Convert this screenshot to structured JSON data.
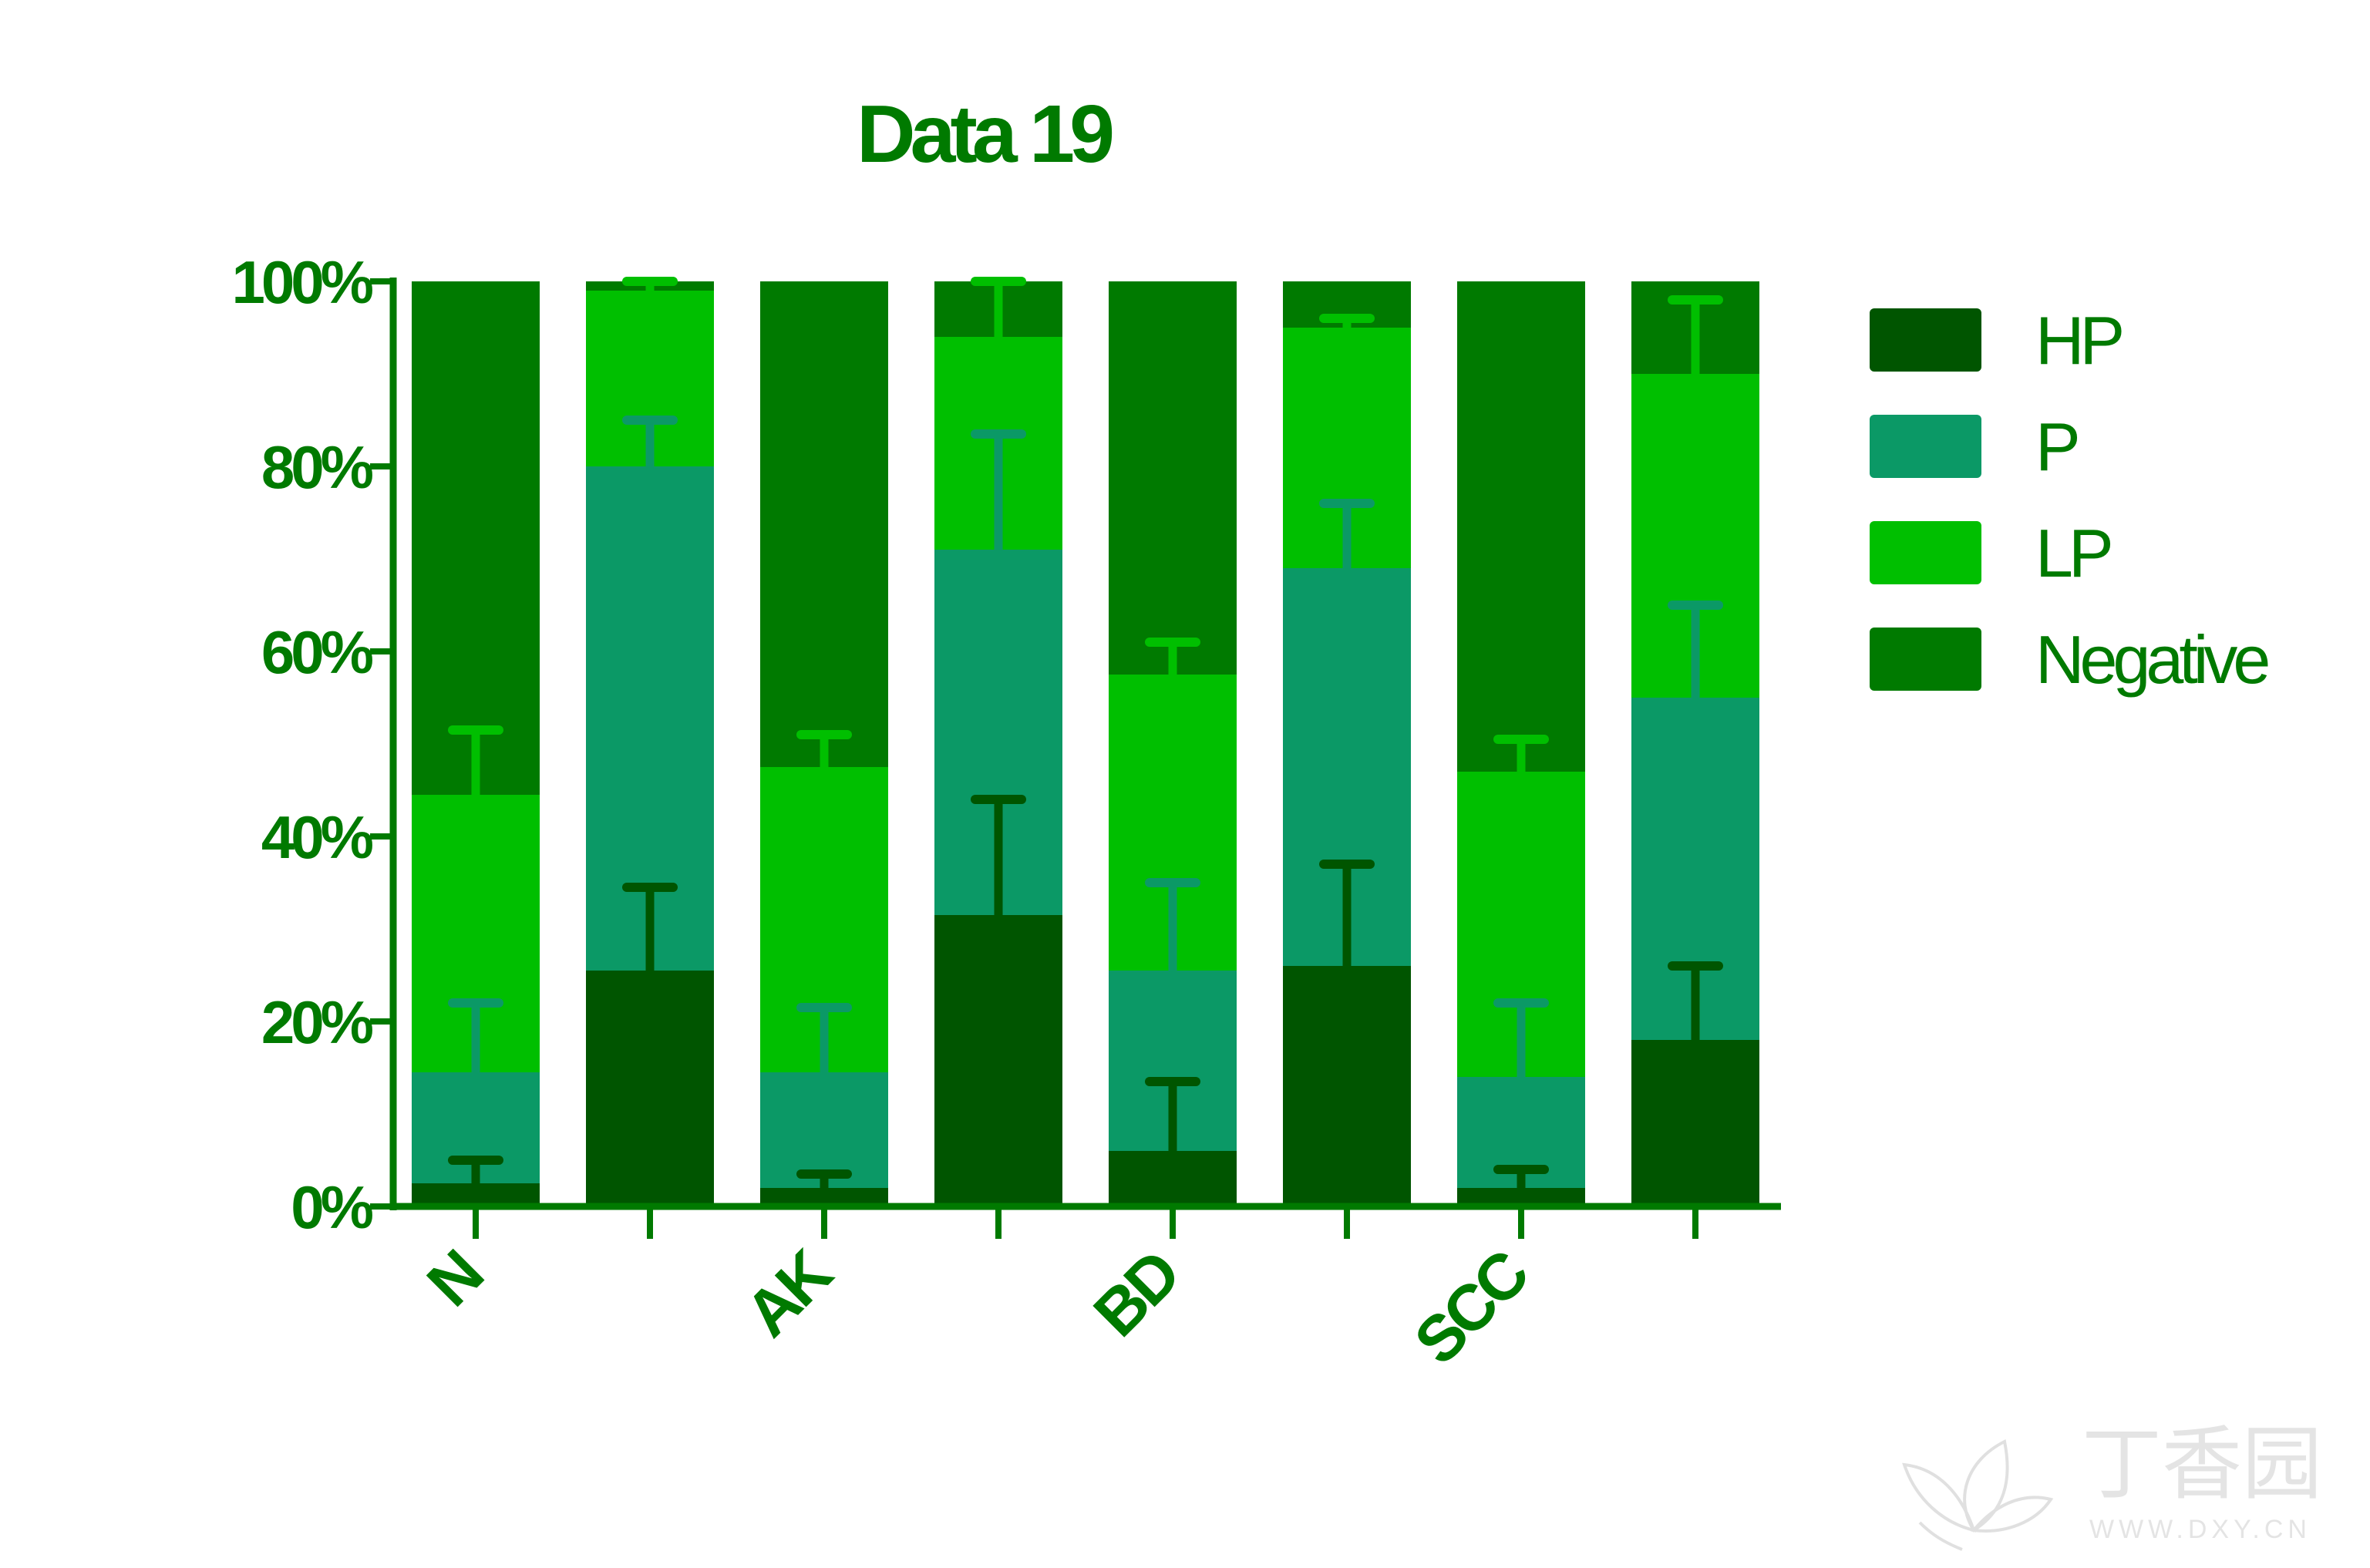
{
  "chart_data": {
    "type": "bar",
    "stacked": true,
    "title": "Data 19",
    "xlabel": "",
    "ylabel": "",
    "ylim": [
      0,
      100
    ],
    "yticks": [
      "0%",
      "20%",
      "40%",
      "60%",
      "80%",
      "100%"
    ],
    "category_labels": [
      "N",
      "",
      "AK",
      "",
      "BD",
      "",
      "SCC",
      ""
    ],
    "series": [
      {
        "name": "HP",
        "color": "#005500",
        "values": [
          2.5,
          25.5,
          2,
          31.5,
          6,
          26,
          2,
          18
        ],
        "errors": [
          2.5,
          9,
          1.5,
          12.5,
          7.5,
          11,
          2,
          8
        ]
      },
      {
        "name": "P",
        "color": "#0b9966",
        "values": [
          12,
          54.5,
          12.5,
          39.5,
          19.5,
          43,
          12,
          37
        ],
        "errors": [
          7.5,
          5,
          7,
          12.5,
          9.5,
          7,
          8,
          10
        ]
      },
      {
        "name": "LP",
        "color": "#00bf00",
        "values": [
          30,
          19,
          33,
          23,
          32,
          26,
          33,
          35
        ],
        "errors": [
          7,
          1.5,
          3.5,
          6,
          3.5,
          1,
          3.5,
          8
        ]
      },
      {
        "name": "Negative",
        "color": "#007a00",
        "values": [
          55.5,
          1,
          52.5,
          6,
          42.5,
          5,
          53,
          10
        ],
        "errors": [
          0,
          0,
          0,
          0,
          0,
          0,
          0,
          0
        ]
      }
    ],
    "legend_position": "right",
    "axis_color": "#007a00"
  },
  "watermark": {
    "cn_text": "丁香园",
    "url_text": "WWW.DXY.CN"
  }
}
